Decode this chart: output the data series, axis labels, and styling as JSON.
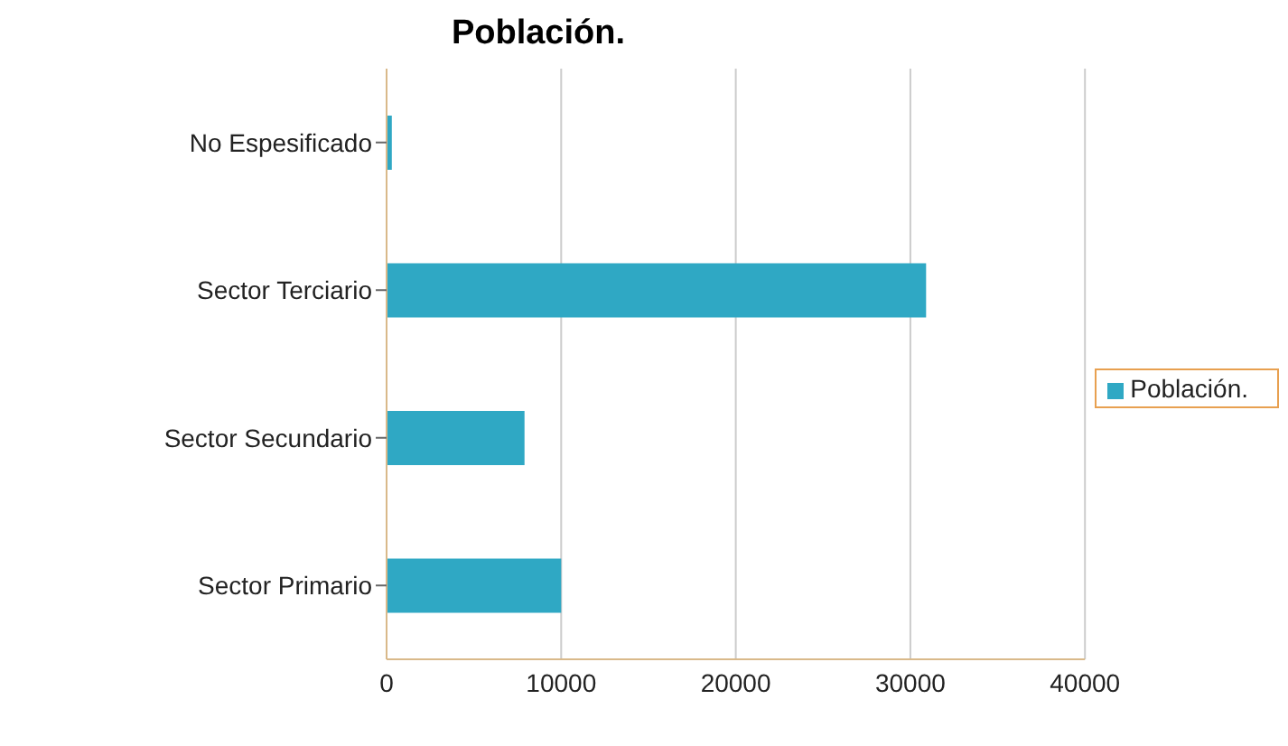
{
  "chart_data": {
    "type": "bar",
    "orientation": "horizontal",
    "title": "Población.",
    "categories": [
      "No Espesificado",
      "Sector Terciario",
      "Sector Secundario",
      "Sector Primario"
    ],
    "series": [
      {
        "name": "Población.",
        "color": "#2fa8c4",
        "values": [
          300,
          30900,
          7900,
          10000
        ]
      }
    ],
    "xlim": [
      0,
      40000
    ],
    "xticks": [
      0,
      10000,
      20000,
      30000,
      40000
    ],
    "grid": "x",
    "legend": "right"
  }
}
